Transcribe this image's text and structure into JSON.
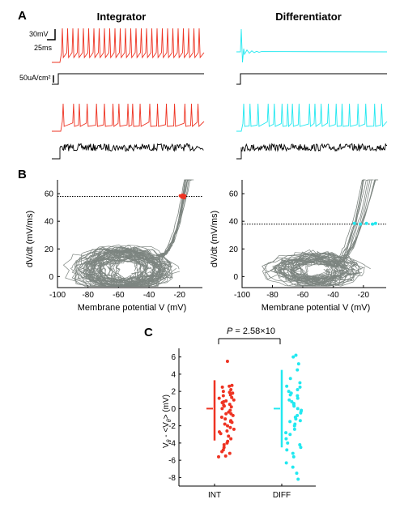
{
  "colors": {
    "integrator": "#ee3322",
    "differentiator": "#22e8f0",
    "phase_plot": "#7d8580",
    "stim": "#000000",
    "axis": "#000000"
  },
  "panel_a": {
    "label": "A",
    "integrator_title": "Integrator",
    "differentiator_title": "Differentiator",
    "scalebar_voltage": "30mV",
    "scalebar_time": "25ms",
    "scalebar_current": "50uA/cm²"
  },
  "panel_b": {
    "label": "B",
    "xlabel": "Membrane potential V (mV)",
    "ylabel": "dV/dt (mV/ms)"
  },
  "panel_c": {
    "label": "C",
    "p_prefix": "P",
    "p_value": " = 2.58×10"
  },
  "chart_data": [
    {
      "type": "line",
      "panel": "A",
      "title": "Integrator",
      "series": [
        {
          "values": [],
          "note_on_shown_structure": ""
        }
      ]
    },
    {
      "type": "scatter",
      "panel": "B-left",
      "xlabel": "Membrane potential V (mV)",
      "ylabel": "dV/dt (mV/ms)",
      "xlim": [
        -100,
        -5
      ],
      "ylim": [
        -8,
        70
      ],
      "xticks": [
        -100,
        -80,
        -60,
        -40,
        -20
      ],
      "yticks": [
        0,
        20,
        40,
        60
      ],
      "threshold_line_y": 58,
      "threshold_points": [
        [
          -19.5,
          58.5
        ],
        [
          -18.5,
          57.5
        ],
        [
          -18.0,
          59.0
        ],
        [
          -17.5,
          58.0
        ],
        [
          -17.0,
          57.0
        ],
        [
          -16.5,
          58.5
        ]
      ]
    },
    {
      "type": "scatter",
      "panel": "B-right",
      "xlabel": "Membrane potential V (mV)",
      "ylabel": "dV/dt (mV/ms)",
      "xlim": [
        -100,
        -5
      ],
      "ylim": [
        -8,
        70
      ],
      "xticks": [
        -100,
        -80,
        -60,
        -40,
        -20
      ],
      "yticks": [
        0,
        20,
        40,
        60
      ],
      "threshold_line_y": 38,
      "threshold_points": [
        [
          -26,
          38.5
        ],
        [
          -22,
          38
        ],
        [
          -18,
          38.5
        ],
        [
          -14,
          38
        ],
        [
          -12,
          38.5
        ]
      ]
    },
    {
      "type": "scatter",
      "panel": "C",
      "ylabel": "V_θ - <V_θ> (mV)",
      "categories": [
        "INT",
        "DIFF"
      ],
      "ylim": [
        -9,
        7
      ],
      "yticks": [
        -8,
        -6,
        -4,
        -2,
        0,
        2,
        4,
        6
      ],
      "series": [
        {
          "name": "INT",
          "mean": 0,
          "sd_low": -3.7,
          "sd_high": 3.3,
          "values": [
            5.5,
            2.7,
            2.6,
            2.5,
            2.2,
            2.0,
            1.8,
            1.6,
            1.5,
            1.3,
            1.2,
            1.0,
            0.8,
            0.7,
            0.5,
            0.3,
            0.2,
            0.0,
            -0.2,
            -0.4,
            -0.6,
            -0.8,
            -1.0,
            -1.2,
            -1.4,
            -1.6,
            -1.8,
            -2.0,
            -2.2,
            -2.4,
            -2.6,
            -2.9,
            -3.2,
            -3.5,
            -3.8,
            -4.0,
            -4.2,
            -4.5,
            -4.8,
            -5.0,
            -5.2,
            -5.5,
            -5.6,
            0.9,
            -0.6,
            1.9,
            -2.7,
            0.4,
            -1.5
          ]
        },
        {
          "name": "DIFF",
          "mean": 0,
          "sd_low": -4.5,
          "sd_high": 4.5,
          "values": [
            6.2,
            6.0,
            5.2,
            4.5,
            3.5,
            3.0,
            2.5,
            2.2,
            2.0,
            1.8,
            1.5,
            1.2,
            1.0,
            0.8,
            0.5,
            0.3,
            0.0,
            -0.3,
            -0.5,
            -0.8,
            -1.0,
            -1.2,
            -1.5,
            -1.8,
            -2.0,
            -2.4,
            -2.8,
            -3.0,
            -3.5,
            -4.0,
            -4.2,
            -4.5,
            -4.8,
            -5.2,
            -5.6,
            -6.3,
            -6.8,
            -7.5,
            -8.2,
            1.6,
            -0.2,
            0.6,
            -1.4,
            2.6
          ]
        }
      ]
    }
  ],
  "panel_c_axis": {
    "ylabel_main": "V",
    "ylabel_sub": "θ",
    "ylabel_mid": " - <V",
    "ylabel_sub2": "θ",
    "ylabel_end": "> (mV)",
    "int_label": "INT",
    "diff_label": "DIFF"
  }
}
